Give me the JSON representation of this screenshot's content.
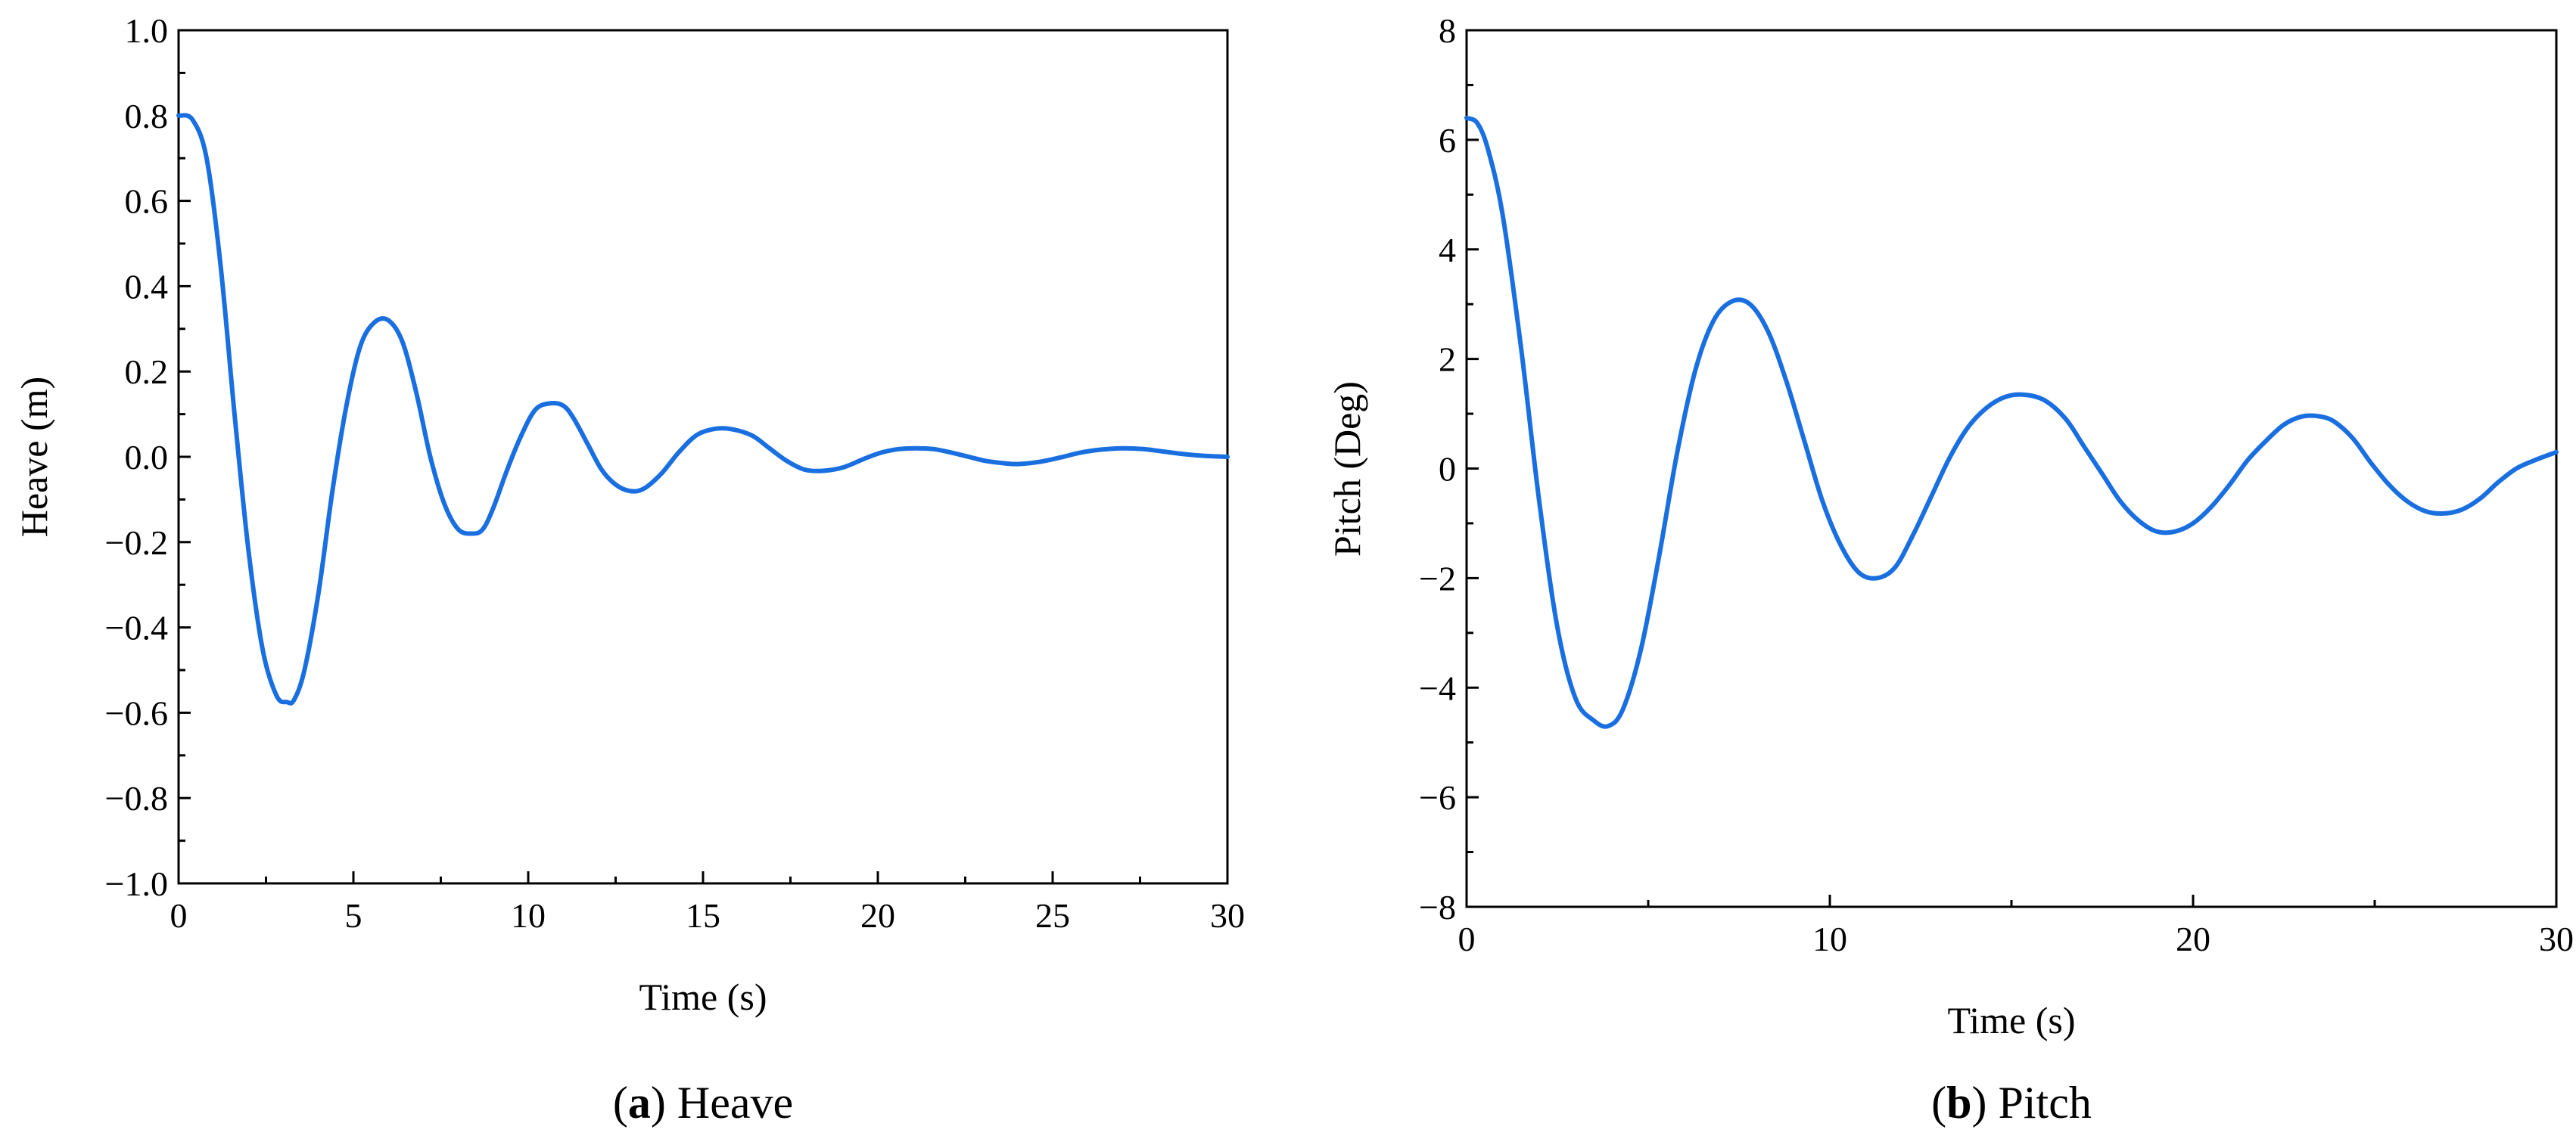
{
  "chart_data": [
    {
      "type": "line",
      "xlabel": "Time (s)",
      "ylabel": "Heave (m)",
      "caption_letter": "a",
      "caption_text": "Heave",
      "xlim": [
        0,
        30
      ],
      "ylim": [
        -1.0,
        1.0
      ],
      "x_ticks": [
        "0",
        "5",
        "10",
        "15",
        "20",
        "25",
        "30"
      ],
      "y_ticks": [
        "−1.0",
        "−0.8",
        "−0.6",
        "−0.4",
        "−0.2",
        "0.0",
        "0.2",
        "0.4",
        "0.6",
        "0.8",
        "1.0"
      ],
      "grid": false,
      "color": "#1a6fe0",
      "series": [
        {
          "x": [
            0,
            0.4,
            0.8,
            1.2,
            1.6,
            2.0,
            2.4,
            2.8,
            3.1,
            3.3,
            3.6,
            4.0,
            4.4,
            4.8,
            5.2,
            5.6,
            6.0,
            6.4,
            6.8,
            7.2,
            7.6,
            8.0,
            8.4,
            8.7,
            9.0,
            9.4,
            9.8,
            10.2,
            10.6,
            11.0,
            11.3,
            11.7,
            12.1,
            12.5,
            12.9,
            13.3,
            13.8,
            14.3,
            14.8,
            15.3,
            15.8,
            16.4,
            16.9,
            17.4,
            17.9,
            18.4,
            19.0,
            19.6,
            20.1,
            20.6,
            21.1,
            21.6,
            22.1,
            22.6,
            23.1,
            23.6,
            24.0,
            24.6,
            25.2,
            25.8,
            26.4,
            27.0,
            27.6,
            28.2,
            28.8,
            29.4,
            30.0
          ],
          "y": [
            0.8,
            0.79,
            0.7,
            0.45,
            0.1,
            -0.22,
            -0.45,
            -0.56,
            -0.575,
            -0.57,
            -0.5,
            -0.32,
            -0.08,
            0.12,
            0.26,
            0.315,
            0.32,
            0.27,
            0.15,
            0.0,
            -0.11,
            -0.17,
            -0.18,
            -0.17,
            -0.12,
            -0.03,
            0.05,
            0.11,
            0.125,
            0.12,
            0.09,
            0.03,
            -0.03,
            -0.065,
            -0.08,
            -0.075,
            -0.04,
            0.01,
            0.05,
            0.065,
            0.065,
            0.05,
            0.02,
            -0.01,
            -0.03,
            -0.033,
            -0.025,
            -0.005,
            0.01,
            0.018,
            0.02,
            0.018,
            0.01,
            0.0,
            -0.01,
            -0.015,
            -0.017,
            -0.012,
            -0.002,
            0.01,
            0.017,
            0.02,
            0.018,
            0.012,
            0.006,
            0.002,
            0.0
          ]
        }
      ]
    },
    {
      "type": "line",
      "xlabel": "Time (s)",
      "ylabel": "Pitch (Deg)",
      "caption_letter": "b",
      "caption_text": "Pitch",
      "xlim": [
        0,
        30
      ],
      "ylim": [
        -8,
        8
      ],
      "x_ticks": [
        "0",
        "10",
        "20",
        "30"
      ],
      "y_ticks": [
        "−8",
        "−6",
        "−4",
        "−2",
        "0",
        "2",
        "4",
        "6",
        "8"
      ],
      "grid": false,
      "color": "#1a6fe0",
      "series": [
        {
          "x": [
            0,
            0.3,
            0.6,
            1.0,
            1.5,
            2.0,
            2.5,
            3.0,
            3.5,
            3.9,
            4.3,
            4.8,
            5.3,
            5.8,
            6.3,
            6.8,
            7.3,
            7.8,
            8.3,
            8.8,
            9.3,
            9.8,
            10.3,
            10.8,
            11.3,
            11.8,
            12.3,
            12.8,
            13.3,
            13.8,
            14.3,
            14.8,
            15.3,
            15.9,
            16.5,
            17.0,
            17.5,
            18.0,
            18.5,
            19.0,
            19.5,
            20.0,
            20.5,
            21.0,
            21.5,
            22.0,
            22.5,
            23.0,
            23.5,
            23.9,
            24.4,
            24.9,
            25.4,
            25.9,
            26.4,
            26.9,
            27.4,
            27.9,
            28.4,
            28.9,
            29.4,
            30.0
          ],
          "y": [
            6.4,
            6.3,
            5.8,
            4.6,
            2.2,
            -0.6,
            -2.9,
            -4.2,
            -4.6,
            -4.7,
            -4.4,
            -3.3,
            -1.6,
            0.3,
            1.8,
            2.7,
            3.05,
            3.0,
            2.5,
            1.6,
            0.5,
            -0.6,
            -1.4,
            -1.9,
            -2.0,
            -1.8,
            -1.2,
            -0.5,
            0.2,
            0.75,
            1.1,
            1.3,
            1.35,
            1.25,
            0.9,
            0.4,
            -0.1,
            -0.6,
            -0.95,
            -1.15,
            -1.15,
            -1.0,
            -0.7,
            -0.3,
            0.15,
            0.5,
            0.8,
            0.95,
            0.95,
            0.85,
            0.55,
            0.1,
            -0.3,
            -0.6,
            -0.78,
            -0.82,
            -0.75,
            -0.55,
            -0.25,
            0.0,
            0.15,
            0.3
          ]
        }
      ]
    }
  ]
}
